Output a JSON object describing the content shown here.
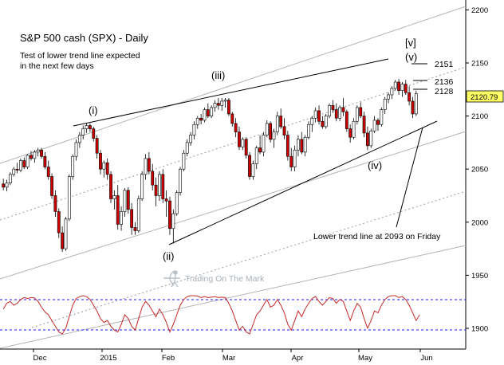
{
  "chart_data": {
    "type": "candlestick",
    "title": "S&P 500 cash (SPX) - Daily",
    "subtitle": [
      "Test of lower trend line expected",
      "in the next few days"
    ],
    "ylim": [
      1880,
      2215
    ],
    "yticks": [
      1900,
      1950,
      2000,
      2050,
      2100,
      2150,
      2200
    ],
    "xlabels": [
      "Dec",
      "2015",
      "Feb",
      "Mar",
      "Apr",
      "May",
      "Jun"
    ],
    "last_price": "2120.79",
    "price_levels": [
      2151,
      2136,
      2128
    ],
    "wave_labels": [
      "(i)",
      "(ii)",
      "(iii)",
      "(iv)",
      "(v)",
      "[v]"
    ],
    "annotation": "Lower trend line at 2093 on Friday",
    "watermark": "Trading On The Mark",
    "candles": [
      [
        2036,
        2041,
        2030,
        2033
      ],
      [
        2033,
        2040,
        2029,
        2037
      ],
      [
        2037,
        2047,
        2035,
        2045
      ],
      [
        2045,
        2052,
        2043,
        2050
      ],
      [
        2050,
        2056,
        2046,
        2049
      ],
      [
        2049,
        2060,
        2047,
        2058
      ],
      [
        2058,
        2061,
        2050,
        2052
      ],
      [
        2052,
        2064,
        2050,
        2063
      ],
      [
        2063,
        2067,
        2058,
        2060
      ],
      [
        2060,
        2068,
        2056,
        2066
      ],
      [
        2066,
        2070,
        2062,
        2068
      ],
      [
        2068,
        2070,
        2060,
        2062
      ],
      [
        2062,
        2066,
        2050,
        2052
      ],
      [
        2052,
        2058,
        2040,
        2043
      ],
      [
        2043,
        2046,
        2022,
        2025
      ],
      [
        2025,
        2030,
        2005,
        2010
      ],
      [
        2010,
        2013,
        1985,
        1990
      ],
      [
        1990,
        1996,
        1972,
        1975
      ],
      [
        1975,
        2005,
        1973,
        2003
      ],
      [
        2003,
        2045,
        2001,
        2043
      ],
      [
        2043,
        2064,
        2040,
        2062
      ],
      [
        2062,
        2078,
        2058,
        2075
      ],
      [
        2075,
        2085,
        2070,
        2082
      ],
      [
        2082,
        2091,
        2078,
        2088
      ],
      [
        2088,
        2093,
        2084,
        2091
      ],
      [
        2091,
        2093,
        2085,
        2088
      ],
      [
        2088,
        2090,
        2076,
        2079
      ],
      [
        2079,
        2082,
        2060,
        2065
      ],
      [
        2065,
        2068,
        2045,
        2050
      ],
      [
        2050,
        2058,
        2042,
        2056
      ],
      [
        2056,
        2060,
        2040,
        2045
      ],
      [
        2045,
        2048,
        2018,
        2022
      ],
      [
        2022,
        2030,
        2012,
        2025
      ],
      [
        2025,
        2035,
        1993,
        1998
      ],
      [
        1998,
        2015,
        1992,
        2010
      ],
      [
        2010,
        2032,
        2005,
        2030
      ],
      [
        2030,
        2033,
        2008,
        2012
      ],
      [
        2012,
        2018,
        1988,
        1995
      ],
      [
        1995,
        2000,
        1988,
        1992
      ],
      [
        1992,
        2025,
        1990,
        2022
      ],
      [
        2022,
        2048,
        2020,
        2045
      ],
      [
        2045,
        2064,
        2040,
        2060
      ],
      [
        2060,
        2066,
        2045,
        2048
      ],
      [
        2048,
        2055,
        2030,
        2035
      ],
      [
        2035,
        2042,
        2015,
        2025
      ],
      [
        2025,
        2048,
        2020,
        2045
      ],
      [
        2045,
        2050,
        2018,
        2022
      ],
      [
        2022,
        2030,
        2005,
        2020
      ],
      [
        2020,
        2024,
        1988,
        1994
      ],
      [
        1994,
        2012,
        1980,
        2008
      ],
      [
        2008,
        2030,
        2006,
        2028
      ],
      [
        2028,
        2052,
        2025,
        2050
      ],
      [
        2050,
        2068,
        2048,
        2065
      ],
      [
        2065,
        2078,
        2062,
        2075
      ],
      [
        2075,
        2085,
        2072,
        2082
      ],
      [
        2082,
        2095,
        2078,
        2092
      ],
      [
        2092,
        2100,
        2088,
        2098
      ],
      [
        2098,
        2102,
        2092,
        2096
      ],
      [
        2096,
        2108,
        2094,
        2106
      ],
      [
        2106,
        2112,
        2098,
        2100
      ],
      [
        2100,
        2110,
        2098,
        2108
      ],
      [
        2108,
        2115,
        2104,
        2112
      ],
      [
        2112,
        2117,
        2106,
        2110
      ],
      [
        2110,
        2117,
        2105,
        2114
      ],
      [
        2114,
        2117,
        2108,
        2115
      ],
      [
        2115,
        2117,
        2100,
        2102
      ],
      [
        2102,
        2104,
        2090,
        2093
      ],
      [
        2093,
        2098,
        2080,
        2085
      ],
      [
        2085,
        2090,
        2068,
        2071
      ],
      [
        2071,
        2080,
        2068,
        2078
      ],
      [
        2078,
        2080,
        2060,
        2063
      ],
      [
        2063,
        2066,
        2040,
        2043
      ],
      [
        2043,
        2058,
        2040,
        2055
      ],
      [
        2055,
        2072,
        2050,
        2070
      ],
      [
        2070,
        2082,
        2064,
        2066
      ],
      [
        2066,
        2085,
        2062,
        2082
      ],
      [
        2082,
        2096,
        2080,
        2093
      ],
      [
        2093,
        2095,
        2075,
        2078
      ],
      [
        2078,
        2088,
        2070,
        2085
      ],
      [
        2085,
        2104,
        2082,
        2100
      ],
      [
        2100,
        2107,
        2088,
        2090
      ],
      [
        2090,
        2098,
        2078,
        2082
      ],
      [
        2082,
        2086,
        2058,
        2062
      ],
      [
        2062,
        2070,
        2048,
        2052
      ],
      [
        2052,
        2072,
        2048,
        2068
      ],
      [
        2068,
        2082,
        2062,
        2078
      ],
      [
        2078,
        2085,
        2064,
        2066
      ],
      [
        2066,
        2082,
        2062,
        2080
      ],
      [
        2080,
        2095,
        2078,
        2092
      ],
      [
        2092,
        2100,
        2085,
        2098
      ],
      [
        2098,
        2108,
        2094,
        2105
      ],
      [
        2105,
        2110,
        2092,
        2095
      ],
      [
        2095,
        2100,
        2088,
        2090
      ],
      [
        2090,
        2102,
        2088,
        2100
      ],
      [
        2100,
        2112,
        2098,
        2110
      ],
      [
        2110,
        2115,
        2103,
        2106
      ],
      [
        2106,
        2112,
        2095,
        2098
      ],
      [
        2098,
        2110,
        2095,
        2108
      ],
      [
        2108,
        2117,
        2100,
        2104
      ],
      [
        2104,
        2106,
        2085,
        2088
      ],
      [
        2088,
        2092,
        2075,
        2080
      ],
      [
        2080,
        2098,
        2078,
        2095
      ],
      [
        2095,
        2110,
        2092,
        2108
      ],
      [
        2108,
        2113,
        2098,
        2100
      ],
      [
        2100,
        2104,
        2080,
        2084
      ],
      [
        2084,
        2090,
        2068,
        2072
      ],
      [
        2072,
        2088,
        2070,
        2086
      ],
      [
        2086,
        2100,
        2084,
        2096
      ],
      [
        2096,
        2098,
        2086,
        2092
      ],
      [
        2092,
        2108,
        2090,
        2106
      ],
      [
        2106,
        2118,
        2102,
        2116
      ],
      [
        2116,
        2122,
        2112,
        2120
      ],
      [
        2120,
        2128,
        2116,
        2126
      ],
      [
        2126,
        2134,
        2124,
        2132
      ],
      [
        2132,
        2135,
        2120,
        2124
      ],
      [
        2124,
        2132,
        2118,
        2130
      ],
      [
        2130,
        2134,
        2120,
        2122
      ],
      [
        2122,
        2128,
        2110,
        2114
      ],
      [
        2114,
        2118,
        2098,
        2102
      ],
      [
        2102,
        2124,
        2100,
        2121
      ]
    ],
    "oscillator": [
      0.3,
      0.6,
      0.7,
      0.5,
      0.6,
      0.8,
      0.9,
      0.85,
      0.9,
      0.88,
      0.7,
      0.4,
      0.15,
      0.0,
      -0.3,
      -0.6,
      -0.9,
      -1.0,
      -0.7,
      -0.1,
      0.5,
      0.85,
      0.95,
      1.0,
      0.95,
      0.8,
      0.5,
      0.2,
      -0.2,
      -0.4,
      -0.3,
      -0.6,
      -0.8,
      -0.9,
      -0.5,
      0.0,
      -0.2,
      -0.6,
      -0.8,
      -0.2,
      0.4,
      0.7,
      0.5,
      0.2,
      -0.1,
      0.3,
      0.0,
      -0.4,
      -0.9,
      -0.5,
      0.0,
      0.5,
      0.8,
      0.95,
      1.0,
      1.0,
      0.98,
      0.9,
      0.95,
      0.9,
      0.92,
      0.95,
      0.9,
      0.92,
      0.9,
      0.6,
      0.2,
      -0.3,
      -0.8,
      -0.6,
      -0.9,
      -1.0,
      -0.5,
      0.0,
      0.2,
      0.5,
      0.8,
      0.4,
      0.5,
      0.8,
      0.5,
      0.1,
      -0.5,
      -0.8,
      -0.3,
      0.2,
      -0.1,
      0.3,
      0.6,
      0.85,
      0.95,
      0.7,
      0.5,
      0.7,
      0.9,
      0.85,
      0.6,
      0.8,
      0.7,
      0.2,
      -0.3,
      0.2,
      0.6,
      0.4,
      -0.2,
      -0.7,
      -0.3,
      0.2,
      0.1,
      0.5,
      0.8,
      0.95,
      1.0,
      1.0,
      0.9,
      0.95,
      0.8,
      0.5,
      0.1,
      -0.3,
      0.0
    ]
  },
  "colors": {
    "up_fill": "#ffffff",
    "down_fill": "#cc0000",
    "candle_outline": "#000000",
    "trend_line": "#000000",
    "channel_line": "#b4b4b4",
    "channel_dotted": "#9a9a9a",
    "oscillator_line": "#c62828",
    "oscillator_band": "#1a1aff",
    "price_tag_bg": "#ffff66"
  }
}
